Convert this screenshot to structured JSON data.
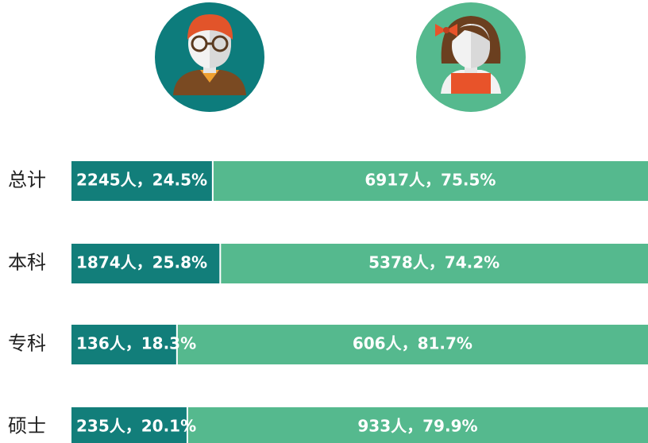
{
  "chart_data": {
    "type": "bar",
    "orientation": "horizontal",
    "stacked": true,
    "categories": [
      "总计",
      "本科",
      "专科",
      "硕士"
    ],
    "xlim": [
      0,
      100
    ],
    "series": [
      {
        "color": "#127e7a",
        "values": [
          24.5,
          25.8,
          18.3,
          20.1
        ],
        "value_labels": [
          "2245人，24.5%",
          "1874人，25.8%",
          "136人，18.3%",
          "235人，20.1%"
        ]
      },
      {
        "color": "#55b98e",
        "values": [
          75.5,
          74.2,
          81.7,
          79.9
        ],
        "value_labels": [
          "6917人，75.5%",
          "5378人，74.2%",
          "606人，81.7%",
          "933人，79.9%"
        ]
      }
    ]
  }
}
